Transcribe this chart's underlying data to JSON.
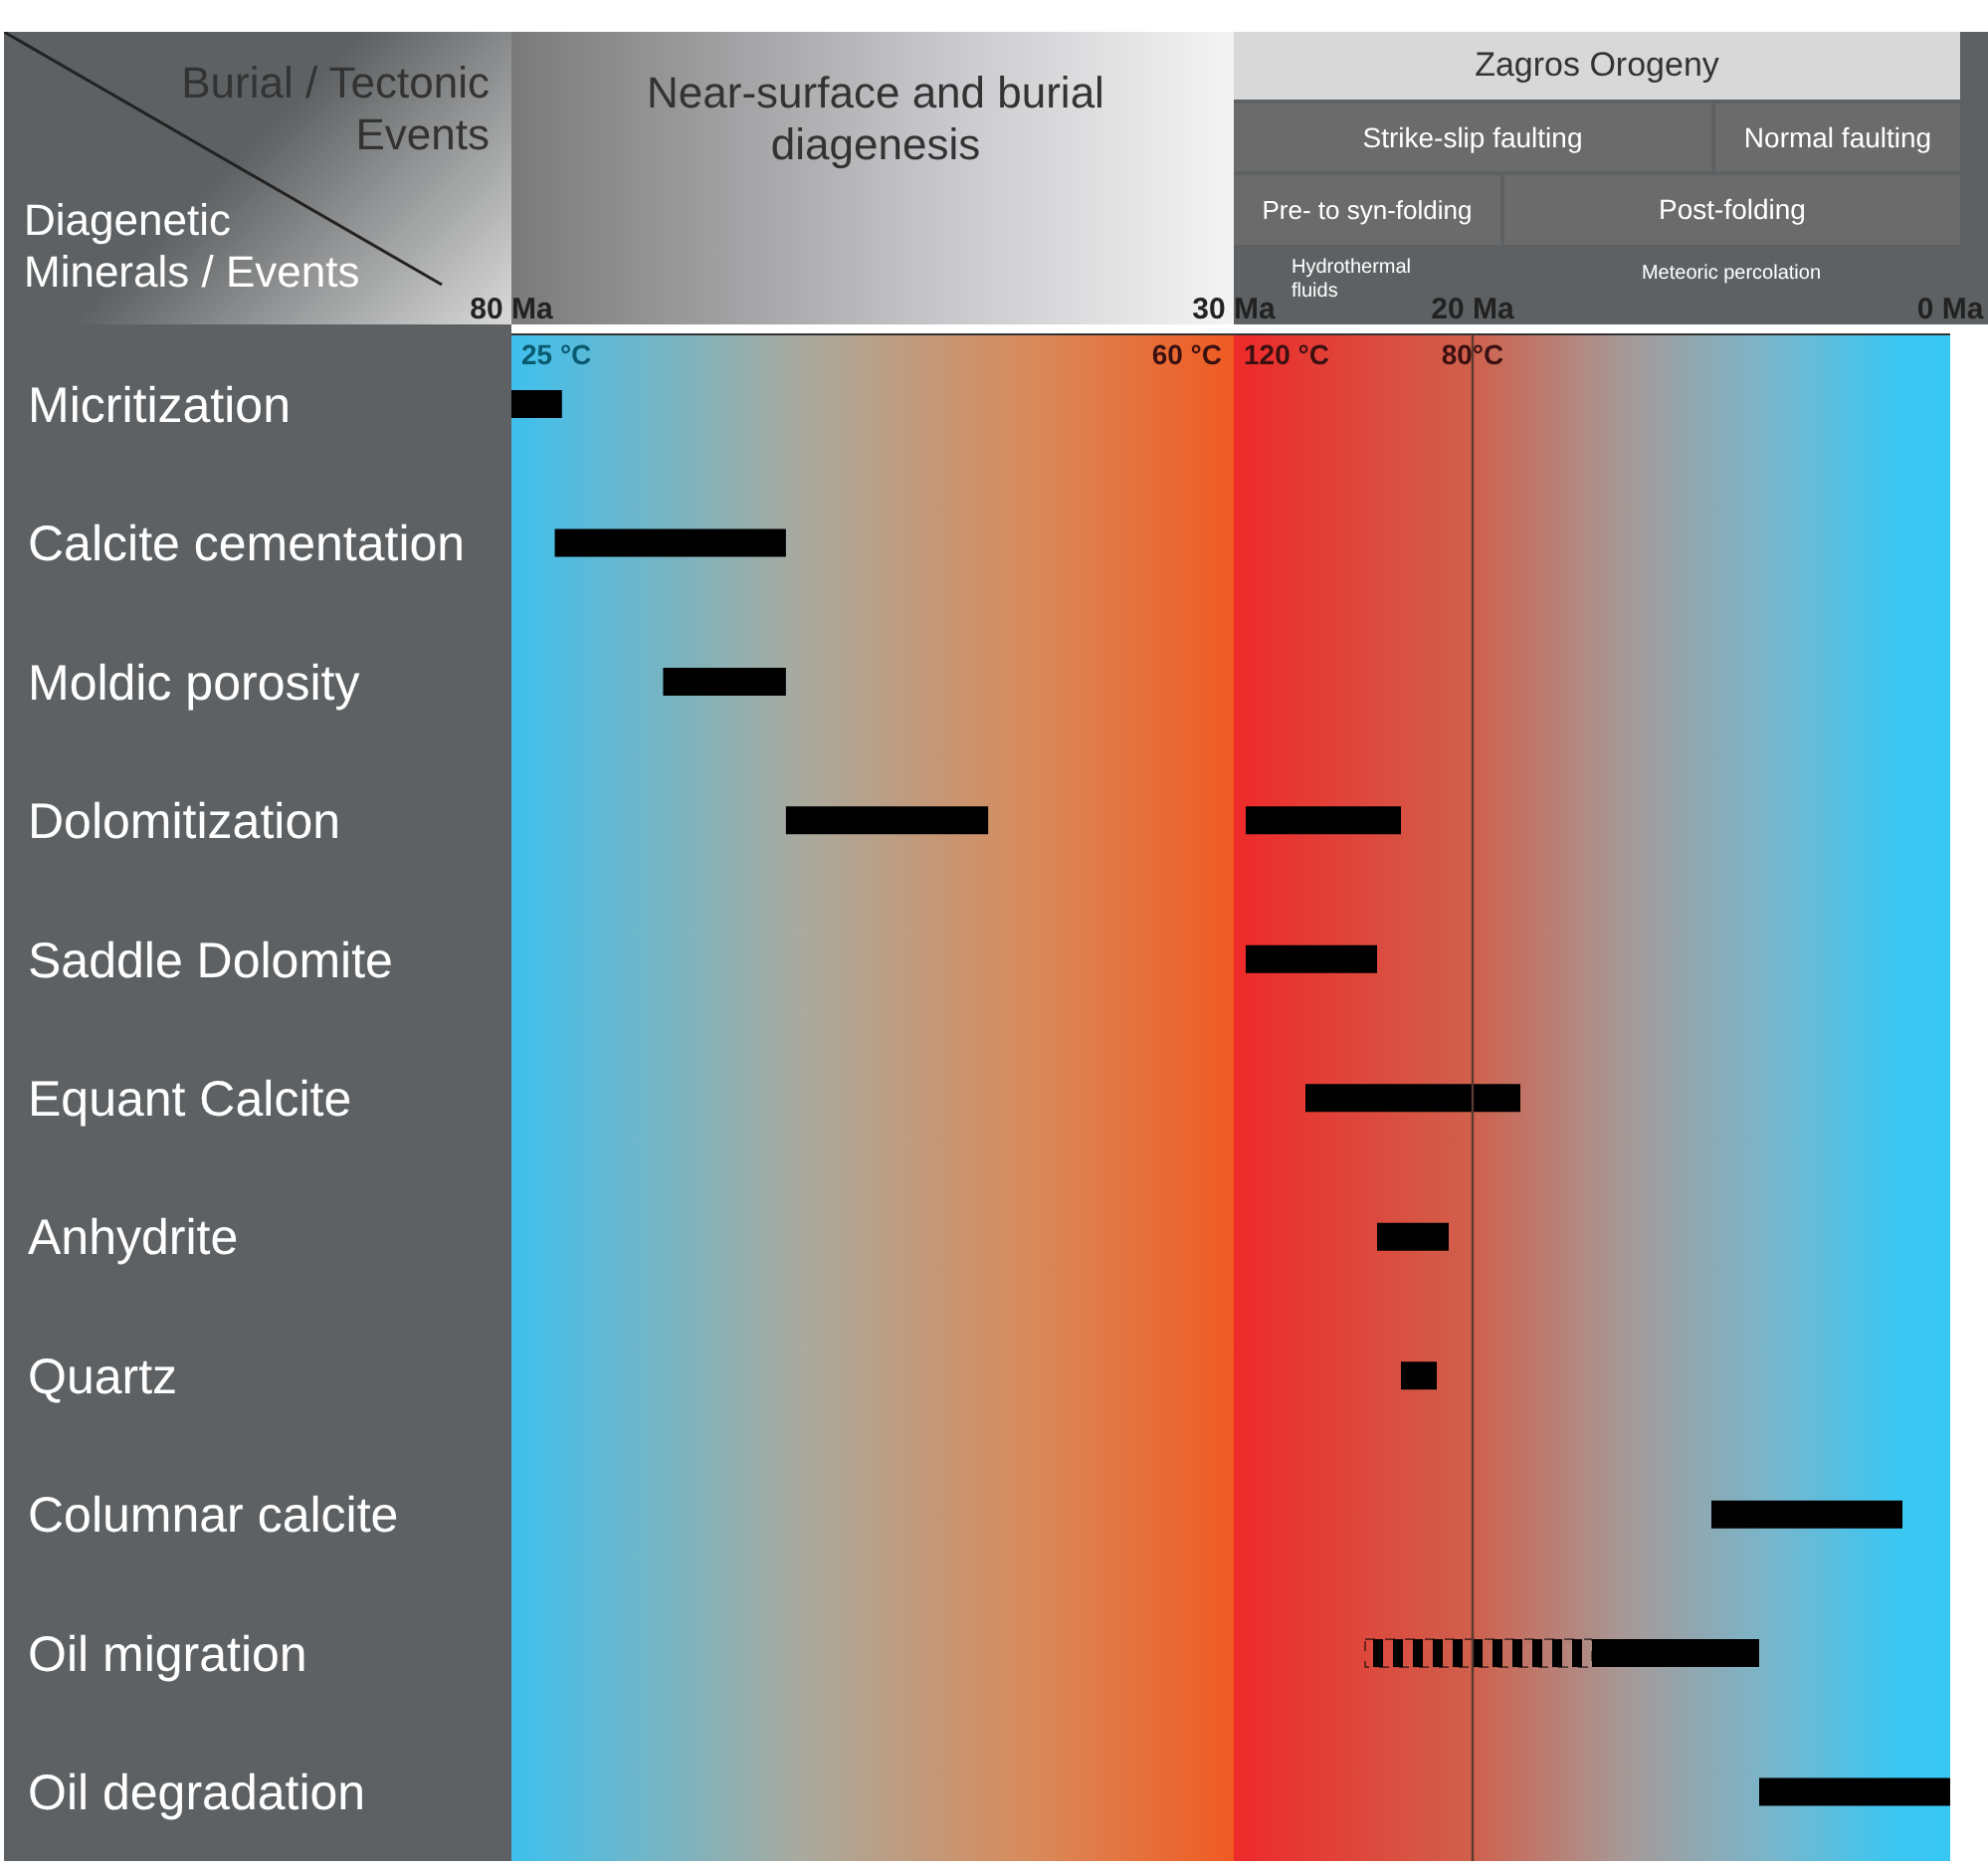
{
  "chart_data": [
    {
      "type": "bar",
      "orientation": "horizontal",
      "categories": [
        "Micritization",
        "Calcite cementation",
        "Moldic porosity",
        "Dolomitization",
        "Saddle Dolomite",
        "Equant Calcite",
        "Anhydrite",
        "Quartz",
        "Columnar calcite",
        "Oil migration",
        "Oil degradation"
      ],
      "series": [
        {
          "color": "#000000",
          "base": [
            76.5,
            61,
            61,
            47,
            null,
            null,
            null,
            null,
            null,
            null,
            null
          ],
          "values": [
            3.5,
            16,
            8.5,
            14,
            null,
            null,
            null,
            null,
            null,
            null,
            null
          ]
        }
      ],
      "xlim": [
        80,
        30
      ],
      "xticks": [
        {
          "value": 80,
          "label": "80 Ma"
        },
        {
          "value": 30,
          "label": "30 Ma"
        }
      ],
      "annotations": [
        "Burial / Tectonic Events",
        "Diagenetic Minerals / Events",
        "Near-surface and burial diagenesis",
        "25 °C",
        "60 °C"
      ]
    },
    {
      "type": "bar",
      "orientation": "horizontal",
      "categories": [
        null,
        null,
        null,
        null,
        null,
        null,
        null,
        null,
        null,
        null,
        null
      ],
      "series": [
        {
          "color": "#000000",
          "base": [
            null,
            null,
            null,
            23,
            24,
            18,
            21,
            21.5,
            2,
            8,
            0
          ],
          "values": [
            null,
            null,
            null,
            6.5,
            5.5,
            9,
            3,
            1.5,
            8,
            7,
            8
          ]
        },
        {
          "color": "#000000",
          "line_style": "dashed",
          "base": [
            null,
            null,
            null,
            null,
            null,
            null,
            null,
            null,
            null,
            15,
            null
          ],
          "values": [
            null,
            null,
            null,
            null,
            null,
            null,
            null,
            null,
            null,
            9.5,
            null
          ]
        }
      ],
      "xlim": [
        30,
        0
      ],
      "xticks": [
        {
          "value": 20,
          "label": "20 Ma"
        },
        {
          "value": 0,
          "label": "0 Ma"
        }
      ],
      "tick_labels": "x",
      "ref_lines": [
        {
          "axis": "x",
          "value": 20,
          "color": "#5a3a30"
        }
      ],
      "annotations": [
        "Zagros Orogeny",
        "Strike-slip faulting",
        "Normal faulting",
        "Pre- to syn-folding",
        "Post-folding",
        "Hydrothermal fluids",
        "Meteoric percolation",
        "120 °C",
        "80°C"
      ]
    }
  ]
}
